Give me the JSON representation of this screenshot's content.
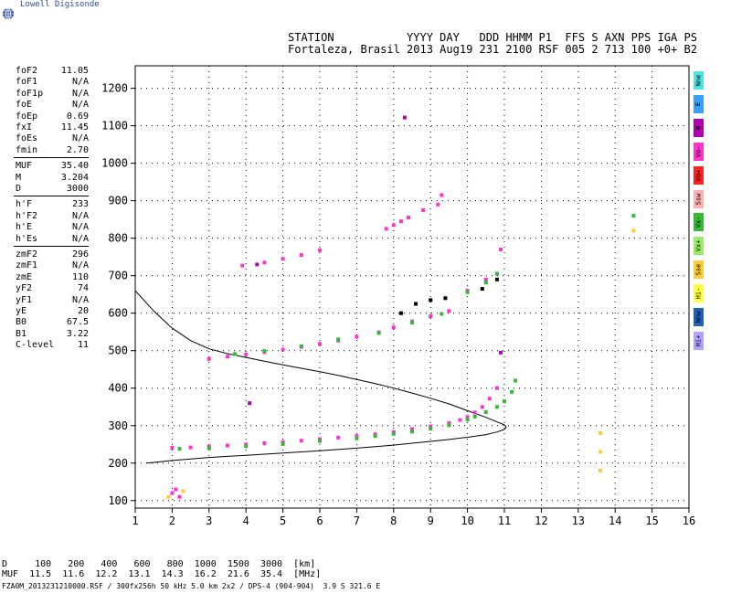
{
  "logo": {
    "text": "Lowell Digisonde",
    "icon": "globe-icon"
  },
  "header": {
    "line1": "STATION           YYYY DAY   DDD HHMM P1  FFS S AXN PPS IGA PS",
    "line2": "Fortaleza, Brasil 2013 Aug19 231 2100 RSF 005 2 713 100 +0+ B2"
  },
  "params": [
    [
      {
        "name": "foF2",
        "value": "11.05"
      },
      {
        "name": "foF1",
        "value": "N/A"
      },
      {
        "name": "foF1p",
        "value": "N/A"
      },
      {
        "name": "foE",
        "value": "N/A"
      },
      {
        "name": "foEp",
        "value": "0.69"
      },
      {
        "name": "fxI",
        "value": "11.45"
      },
      {
        "name": "foEs",
        "value": "N/A"
      },
      {
        "name": "fmin",
        "value": "2.70"
      }
    ],
    [
      {
        "name": "MUF",
        "value": "35.40"
      },
      {
        "name": "M",
        "value": "3.204"
      },
      {
        "name": "D",
        "value": "3000"
      }
    ],
    [
      {
        "name": "h'F",
        "value": "233"
      },
      {
        "name": "h'F2",
        "value": "N/A"
      },
      {
        "name": "h'E",
        "value": "N/A"
      },
      {
        "name": "h'Es",
        "value": "N/A"
      }
    ],
    [
      {
        "name": "zmF2",
        "value": "296"
      },
      {
        "name": "zmF1",
        "value": "N/A"
      },
      {
        "name": "zmE",
        "value": "110"
      },
      {
        "name": "yF2",
        "value": "74"
      },
      {
        "name": "yF1",
        "value": "N/A"
      },
      {
        "name": "yE",
        "value": "20"
      },
      {
        "name": "B0",
        "value": "67.5"
      },
      {
        "name": "B1",
        "value": "3.22"
      },
      {
        "name": "C-level",
        "value": "11"
      }
    ]
  ],
  "polarization_legend": [
    {
      "label": "Nne",
      "color": "#4fe3e3"
    },
    {
      "label": "E",
      "color": "#3aa0ff"
    },
    {
      "label": "W",
      "color": "#b000b0"
    },
    {
      "label": "Vo-",
      "color": "#ff33cc"
    },
    {
      "label": "Vo+",
      "color": "#ff2020"
    },
    {
      "label": "Ssw",
      "color": "#ffb0b0"
    },
    {
      "label": "Vx-",
      "color": "#33bb33"
    },
    {
      "label": "Vx+",
      "color": "#99ee66"
    },
    {
      "label": "Sse",
      "color": "#ffcc33"
    },
    {
      "label": "Hi-",
      "color": "#ffff44"
    },
    {
      "label": "Nnw",
      "color": "#2060c0"
    },
    {
      "label": "Hi+",
      "color": "#b0a0ff"
    }
  ],
  "table": {
    "d_row": "D     100   200   400   600   800  1000  1500  3000  [km]",
    "muf_row": "MUF  11.5  11.6  12.2  13.1  14.3  16.2  21.6  35.4  [MHz]"
  },
  "footer": "FZA0M_2013231210000.RSF / 300fx256h 50 kHz 5.0 km 2x2 / DPS-4 (904-904)  3.9 S 321.6 E",
  "chart_data": {
    "type": "scatter",
    "xlim": [
      1,
      16
    ],
    "ylim": [
      80,
      1260
    ],
    "x_ticks": [
      1,
      2,
      3,
      4,
      5,
      6,
      7,
      8,
      9,
      10,
      11,
      12,
      13,
      14,
      15,
      16
    ],
    "y_ticks": [
      100,
      200,
      300,
      400,
      500,
      600,
      700,
      800,
      900,
      1000,
      1100,
      1200
    ],
    "grid": true,
    "series": [
      {
        "color": "#ff33cc",
        "x": [
          2.0,
          2.5,
          3.0,
          3.5,
          4.0,
          4.5,
          5.0,
          5.5,
          6.0,
          6.5,
          7.0,
          7.5,
          8.0,
          8.5,
          9.0,
          9.5,
          9.8,
          10.0,
          10.2,
          10.4,
          10.6,
          10.8
        ],
        "y": [
          241,
          242,
          244,
          247,
          250,
          253,
          256,
          260,
          264,
          268,
          272,
          277,
          283,
          291,
          298,
          307,
          315,
          323,
          335,
          350,
          372,
          400
        ]
      },
      {
        "color": "#33bb33",
        "x": [
          2.2,
          3.0,
          4.0,
          5.0,
          6.0,
          7.0,
          7.5,
          8.0,
          8.5,
          9.0,
          9.5,
          10.0,
          10.2,
          10.5,
          10.8,
          11.0,
          11.2,
          11.3
        ],
        "y": [
          238,
          240,
          245,
          251,
          259,
          266,
          272,
          278,
          284,
          292,
          301,
          316,
          324,
          336,
          350,
          365,
          390,
          420
        ]
      },
      {
        "color": "#ff33cc",
        "x": [
          2.0,
          2.1,
          2.2
        ],
        "y": [
          120,
          130,
          110
        ]
      },
      {
        "color": "#ffcc33",
        "x": [
          1.9,
          2.3,
          13.6,
          13.6,
          13.6,
          14.5
        ],
        "y": [
          110,
          125,
          180,
          230,
          280,
          820
        ]
      },
      {
        "color": "#ff33cc",
        "x": [
          3.0,
          3.5,
          4.0,
          4.5,
          5.0,
          5.5,
          6.0,
          6.5,
          7.0,
          7.6,
          8.0,
          8.5,
          9.0,
          9.5,
          10.0,
          10.5,
          10.8,
          10.9
        ],
        "y": [
          478,
          484,
          490,
          496,
          503,
          510,
          518,
          527,
          537,
          549,
          562,
          578,
          592,
          606,
          660,
          690,
          705,
          770
        ]
      },
      {
        "color": "#33bb33",
        "x": [
          3.7,
          4.5,
          5.5,
          6.5,
          7.6,
          8.5,
          9.3,
          10.0,
          10.5,
          10.8,
          14.5
        ],
        "y": [
          491,
          499,
          512,
          530,
          547,
          575,
          598,
          656,
          682,
          705,
          860
        ]
      },
      {
        "color": "#ff33cc",
        "x": [
          3.9,
          4.5,
          5.0,
          5.5,
          6.0,
          7.8,
          8.0,
          8.2,
          8.4,
          8.8,
          9.2,
          9.3
        ],
        "y": [
          727,
          735,
          745,
          755,
          768,
          825,
          835,
          845,
          855,
          875,
          890,
          915
        ]
      },
      {
        "color": "#b000b0",
        "x": [
          4.1,
          4.3,
          8.3,
          10.9
        ],
        "y": [
          360,
          730,
          1122,
          495
        ]
      },
      {
        "color": "#000000",
        "x": [
          8.2,
          8.6,
          9.0,
          9.4,
          10.4,
          10.8
        ],
        "y": [
          600,
          625,
          635,
          640,
          665,
          690
        ]
      }
    ],
    "profile_curve": {
      "color": "#000000",
      "x": [
        1.0,
        1.5,
        2.0,
        2.5,
        3.0,
        3.5,
        4.0,
        4.5,
        5.0,
        5.5,
        6.0,
        6.5,
        7.0,
        7.5,
        8.0,
        8.5,
        9.0,
        9.5,
        10.0,
        10.5,
        10.8,
        11.0,
        11.05,
        11.0,
        10.8,
        10.5,
        10.0,
        9.5,
        9.0,
        8.5,
        8.0,
        7.0,
        6.0,
        5.0,
        4.0,
        3.0,
        2.5,
        2.0,
        1.5,
        1.3
      ],
      "y": [
        660,
        606,
        560,
        527,
        505,
        492,
        482,
        472,
        462,
        453,
        444,
        434,
        423,
        412,
        400,
        387,
        373,
        358,
        340,
        322,
        310,
        302,
        296,
        290,
        283,
        276,
        269,
        263,
        258,
        253,
        248,
        240,
        233,
        227,
        221,
        215,
        211,
        207,
        202,
        200
      ]
    }
  }
}
